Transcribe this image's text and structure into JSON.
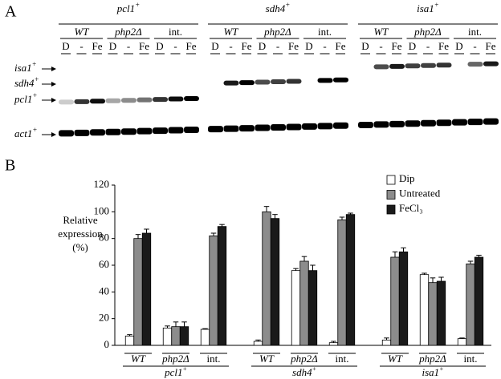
{
  "panel_a": {
    "label": "A",
    "groups": [
      {
        "gene": "pcl1",
        "sup": "+"
      },
      {
        "gene": "sdh4",
        "sup": "+"
      },
      {
        "gene": "isa1",
        "sup": "+"
      }
    ],
    "strains": [
      "WT",
      "php2Δ",
      "int."
    ],
    "lanes": [
      "D",
      "-",
      "Fe"
    ],
    "rows": [
      {
        "gene": "isa1",
        "sup": "+"
      },
      {
        "gene": "sdh4",
        "sup": "+"
      },
      {
        "gene": "pcl1",
        "sup": "+"
      },
      {
        "gene": "act1",
        "sup": "+"
      }
    ]
  },
  "panel_b_label": "B",
  "chart_data": {
    "type": "bar",
    "ylabel": [
      "Relative",
      "expression",
      "(%)"
    ],
    "categories": [
      "WT",
      "php2Δ",
      "int.",
      "WT",
      "php2Δ",
      "int.",
      "WT",
      "php2Δ",
      "int."
    ],
    "groups": [
      {
        "gene": "pcl1",
        "sup": "+"
      },
      {
        "gene": "sdh4",
        "sup": "+"
      },
      {
        "gene": "isa1",
        "sup": "+"
      }
    ],
    "ylim": [
      0,
      120
    ],
    "yticks": [
      0,
      20,
      40,
      60,
      80,
      100,
      120
    ],
    "legend": "top-right",
    "series": [
      {
        "name": "Dip",
        "color": "#ffffff",
        "values": [
          7,
          13,
          12,
          3,
          56,
          2,
          4,
          53,
          5
        ],
        "errors": [
          1,
          1.5,
          0.5,
          1,
          1.5,
          1,
          1.5,
          1,
          0.5
        ]
      },
      {
        "name": "Untreated",
        "color": "#8c8c8c",
        "values": [
          80,
          14,
          82,
          100,
          63,
          94,
          66,
          47,
          61
        ],
        "errors": [
          3,
          3.5,
          2,
          4,
          3.5,
          2,
          4,
          3.5,
          2
        ]
      },
      {
        "name": "FeCl₃",
        "color": "#1a1a1a",
        "values": [
          84,
          14,
          89,
          95,
          56,
          98,
          70,
          48,
          66
        ],
        "errors": [
          3,
          3.5,
          1.5,
          3,
          4,
          1,
          3,
          3,
          1.5
        ]
      }
    ]
  }
}
